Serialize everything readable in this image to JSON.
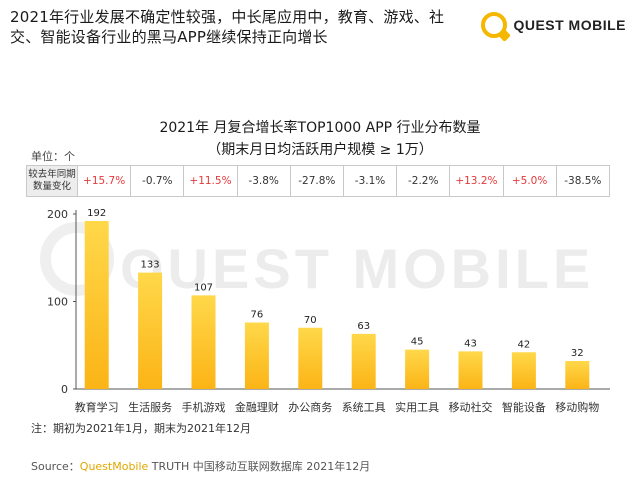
{
  "headline": "2021年行业发展不确定性较强，中长尾应用中，教育、游戏、社交、智能设备行业的黑马APP继续保持正向增长",
  "brand": {
    "name": "QUEST MOBILE",
    "icon": "quest-mobile-logo-icon",
    "color": "#f5b700"
  },
  "watermark": "QUEST MOBILE",
  "unit_label": "单位：个",
  "yoy_header": "较去年同期数量变化",
  "yoy": [
    "+15.7%",
    "-0.7%",
    "+11.5%",
    "-3.8%",
    "-27.8%",
    "-3.1%",
    "-2.2%",
    "+13.2%",
    "+5.0%",
    "-38.5%"
  ],
  "note": "注：期初为2021年1月，期末为2021年12月",
  "source": {
    "prefix": "Source：",
    "brand": "QuestMobile",
    "rest": " TRUTH 中国移动互联网数据库 2021年12月"
  },
  "colors": {
    "bar_top": "#ffd84a",
    "bar_bottom": "#fbb416",
    "positive": "#e4393c",
    "negative": "#333333"
  },
  "chart_data": {
    "type": "bar",
    "title": "2021年 月复合增长率TOP1000 APP 行业分布数量",
    "subtitle": "（期末月日均活跃用户规模 ≥ 1万）",
    "categories": [
      "教育学习",
      "生活服务",
      "手机游戏",
      "金融理财",
      "办公商务",
      "系统工具",
      "实用工具",
      "移动社交",
      "智能设备",
      "移动购物"
    ],
    "values": [
      192,
      133,
      107,
      76,
      70,
      63,
      45,
      43,
      42,
      32
    ],
    "yticks": [
      0,
      100,
      200
    ],
    "ylim": [
      0,
      200
    ],
    "grid": false,
    "legend": "none"
  }
}
